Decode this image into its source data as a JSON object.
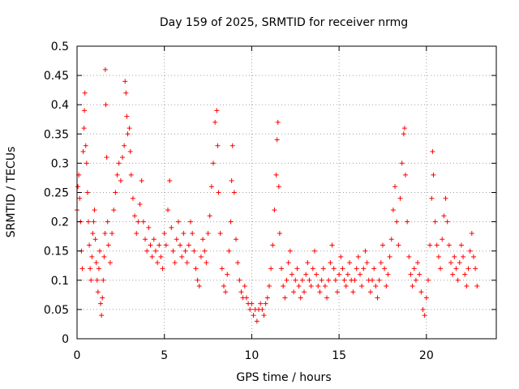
{
  "chart_data": {
    "type": "scatter",
    "title": "Day 159 of 2025, SRMTID for receiver nrmg",
    "xlabel": "GPS time / hours",
    "ylabel": "SRMTID / TECUs",
    "xlim": [
      0,
      24
    ],
    "ylim": [
      0,
      0.5
    ],
    "xticks": [
      0,
      5,
      10,
      15,
      20
    ],
    "yticks": [
      0,
      0.05,
      0.1,
      0.15,
      0.2,
      0.25,
      0.3,
      0.35,
      0.4,
      0.45,
      0.5
    ],
    "xtick_labels": [
      "0",
      "5",
      "10",
      "15",
      "20"
    ],
    "ytick_labels": [
      "0",
      "0.05",
      "0.1",
      "0.15",
      "0.2",
      "0.25",
      "0.3",
      "0.35",
      "0.4",
      "0.45",
      "0.5"
    ],
    "grid": true,
    "marker": "plus",
    "color": "#ff0000",
    "series": [
      {
        "name": "SRMTID",
        "points": [
          [
            0.0,
            0.22
          ],
          [
            0.05,
            0.26
          ],
          [
            0.1,
            0.28
          ],
          [
            0.15,
            0.24
          ],
          [
            0.2,
            0.2
          ],
          [
            0.25,
            0.15
          ],
          [
            0.3,
            0.12
          ],
          [
            0.35,
            0.32
          ],
          [
            0.4,
            0.36
          ],
          [
            0.42,
            0.39
          ],
          [
            0.45,
            0.42
          ],
          [
            0.5,
            0.33
          ],
          [
            0.55,
            0.3
          ],
          [
            0.6,
            0.25
          ],
          [
            0.65,
            0.2
          ],
          [
            0.7,
            0.16
          ],
          [
            0.75,
            0.12
          ],
          [
            0.8,
            0.1
          ],
          [
            0.85,
            0.14
          ],
          [
            0.9,
            0.18
          ],
          [
            0.95,
            0.2
          ],
          [
            1.0,
            0.22
          ],
          [
            1.05,
            0.17
          ],
          [
            1.1,
            0.13
          ],
          [
            1.15,
            0.1
          ],
          [
            1.2,
            0.08
          ],
          [
            1.25,
            0.12
          ],
          [
            1.3,
            0.15
          ],
          [
            1.35,
            0.06
          ],
          [
            1.4,
            0.04
          ],
          [
            1.45,
            0.07
          ],
          [
            1.5,
            0.1
          ],
          [
            1.55,
            0.14
          ],
          [
            1.6,
            0.18
          ],
          [
            1.62,
            0.46
          ],
          [
            1.65,
            0.4
          ],
          [
            1.7,
            0.31
          ],
          [
            1.75,
            0.2
          ],
          [
            1.8,
            0.16
          ],
          [
            1.9,
            0.13
          ],
          [
            2.0,
            0.18
          ],
          [
            2.1,
            0.22
          ],
          [
            2.2,
            0.25
          ],
          [
            2.3,
            0.28
          ],
          [
            2.4,
            0.3
          ],
          [
            2.5,
            0.27
          ],
          [
            2.6,
            0.31
          ],
          [
            2.7,
            0.33
          ],
          [
            2.75,
            0.44
          ],
          [
            2.8,
            0.42
          ],
          [
            2.85,
            0.38
          ],
          [
            2.9,
            0.35
          ],
          [
            3.0,
            0.36
          ],
          [
            3.05,
            0.32
          ],
          [
            3.1,
            0.28
          ],
          [
            3.2,
            0.24
          ],
          [
            3.3,
            0.21
          ],
          [
            3.4,
            0.18
          ],
          [
            3.5,
            0.2
          ],
          [
            3.6,
            0.23
          ],
          [
            3.7,
            0.27
          ],
          [
            3.8,
            0.2
          ],
          [
            3.9,
            0.17
          ],
          [
            4.0,
            0.15
          ],
          [
            4.1,
            0.19
          ],
          [
            4.2,
            0.16
          ],
          [
            4.3,
            0.14
          ],
          [
            4.4,
            0.17
          ],
          [
            4.5,
            0.15
          ],
          [
            4.6,
            0.13
          ],
          [
            4.7,
            0.16
          ],
          [
            4.8,
            0.14
          ],
          [
            4.9,
            0.12
          ],
          [
            5.0,
            0.18
          ],
          [
            5.1,
            0.16
          ],
          [
            5.2,
            0.22
          ],
          [
            5.3,
            0.27
          ],
          [
            5.4,
            0.19
          ],
          [
            5.5,
            0.15
          ],
          [
            5.6,
            0.13
          ],
          [
            5.7,
            0.17
          ],
          [
            5.8,
            0.2
          ],
          [
            5.9,
            0.16
          ],
          [
            6.0,
            0.14
          ],
          [
            6.1,
            0.18
          ],
          [
            6.2,
            0.15
          ],
          [
            6.3,
            0.13
          ],
          [
            6.4,
            0.16
          ],
          [
            6.5,
            0.2
          ],
          [
            6.6,
            0.18
          ],
          [
            6.7,
            0.15
          ],
          [
            6.8,
            0.12
          ],
          [
            6.9,
            0.1
          ],
          [
            7.0,
            0.09
          ],
          [
            7.1,
            0.14
          ],
          [
            7.2,
            0.17
          ],
          [
            7.3,
            0.15
          ],
          [
            7.4,
            0.13
          ],
          [
            7.5,
            0.18
          ],
          [
            7.6,
            0.21
          ],
          [
            7.7,
            0.26
          ],
          [
            7.8,
            0.3
          ],
          [
            7.9,
            0.37
          ],
          [
            8.0,
            0.39
          ],
          [
            8.05,
            0.33
          ],
          [
            8.1,
            0.25
          ],
          [
            8.2,
            0.18
          ],
          [
            8.3,
            0.12
          ],
          [
            8.4,
            0.09
          ],
          [
            8.5,
            0.08
          ],
          [
            8.6,
            0.11
          ],
          [
            8.7,
            0.15
          ],
          [
            8.8,
            0.2
          ],
          [
            8.85,
            0.27
          ],
          [
            8.9,
            0.33
          ],
          [
            9.0,
            0.25
          ],
          [
            9.1,
            0.17
          ],
          [
            9.2,
            0.13
          ],
          [
            9.3,
            0.1
          ],
          [
            9.4,
            0.08
          ],
          [
            9.5,
            0.07
          ],
          [
            9.6,
            0.09
          ],
          [
            9.7,
            0.07
          ],
          [
            9.8,
            0.06
          ],
          [
            9.9,
            0.05
          ],
          [
            10.0,
            0.06
          ],
          [
            10.1,
            0.04
          ],
          [
            10.2,
            0.05
          ],
          [
            10.3,
            0.03
          ],
          [
            10.4,
            0.05
          ],
          [
            10.5,
            0.06
          ],
          [
            10.6,
            0.05
          ],
          [
            10.7,
            0.04
          ],
          [
            10.8,
            0.06
          ],
          [
            10.9,
            0.07
          ],
          [
            11.0,
            0.09
          ],
          [
            11.1,
            0.12
          ],
          [
            11.2,
            0.16
          ],
          [
            11.3,
            0.22
          ],
          [
            11.4,
            0.28
          ],
          [
            11.45,
            0.34
          ],
          [
            11.5,
            0.37
          ],
          [
            11.55,
            0.26
          ],
          [
            11.6,
            0.18
          ],
          [
            11.7,
            0.12
          ],
          [
            11.8,
            0.09
          ],
          [
            11.9,
            0.07
          ],
          [
            12.0,
            0.1
          ],
          [
            12.1,
            0.13
          ],
          [
            12.2,
            0.15
          ],
          [
            12.3,
            0.11
          ],
          [
            12.4,
            0.08
          ],
          [
            12.5,
            0.1
          ],
          [
            12.6,
            0.12
          ],
          [
            12.7,
            0.09
          ],
          [
            12.8,
            0.07
          ],
          [
            12.9,
            0.1
          ],
          [
            13.0,
            0.08
          ],
          [
            13.1,
            0.11
          ],
          [
            13.2,
            0.13
          ],
          [
            13.3,
            0.1
          ],
          [
            13.4,
            0.09
          ],
          [
            13.5,
            0.12
          ],
          [
            13.6,
            0.15
          ],
          [
            13.7,
            0.11
          ],
          [
            13.8,
            0.09
          ],
          [
            13.9,
            0.08
          ],
          [
            14.0,
            0.1
          ],
          [
            14.1,
            0.12
          ],
          [
            14.2,
            0.09
          ],
          [
            14.3,
            0.07
          ],
          [
            14.4,
            0.1
          ],
          [
            14.5,
            0.13
          ],
          [
            14.6,
            0.16
          ],
          [
            14.7,
            0.12
          ],
          [
            14.8,
            0.1
          ],
          [
            14.9,
            0.08
          ],
          [
            15.0,
            0.11
          ],
          [
            15.1,
            0.14
          ],
          [
            15.2,
            0.12
          ],
          [
            15.3,
            0.1
          ],
          [
            15.4,
            0.09
          ],
          [
            15.5,
            0.11
          ],
          [
            15.6,
            0.13
          ],
          [
            15.7,
            0.1
          ],
          [
            15.8,
            0.08
          ],
          [
            15.9,
            0.1
          ],
          [
            16.0,
            0.12
          ],
          [
            16.1,
            0.14
          ],
          [
            16.2,
            0.11
          ],
          [
            16.3,
            0.09
          ],
          [
            16.4,
            0.12
          ],
          [
            16.5,
            0.15
          ],
          [
            16.6,
            0.13
          ],
          [
            16.7,
            0.1
          ],
          [
            16.8,
            0.08
          ],
          [
            16.9,
            0.1
          ],
          [
            17.0,
            0.12
          ],
          [
            17.1,
            0.09
          ],
          [
            17.2,
            0.07
          ],
          [
            17.3,
            0.1
          ],
          [
            17.4,
            0.13
          ],
          [
            17.5,
            0.16
          ],
          [
            17.6,
            0.12
          ],
          [
            17.7,
            0.09
          ],
          [
            17.8,
            0.11
          ],
          [
            17.9,
            0.14
          ],
          [
            18.0,
            0.17
          ],
          [
            18.1,
            0.22
          ],
          [
            18.2,
            0.26
          ],
          [
            18.3,
            0.2
          ],
          [
            18.4,
            0.16
          ],
          [
            18.5,
            0.24
          ],
          [
            18.6,
            0.3
          ],
          [
            18.7,
            0.35
          ],
          [
            18.75,
            0.36
          ],
          [
            18.8,
            0.28
          ],
          [
            18.9,
            0.2
          ],
          [
            19.0,
            0.14
          ],
          [
            19.1,
            0.11
          ],
          [
            19.2,
            0.09
          ],
          [
            19.3,
            0.12
          ],
          [
            19.4,
            0.1
          ],
          [
            19.5,
            0.13
          ],
          [
            19.6,
            0.11
          ],
          [
            19.7,
            0.08
          ],
          [
            19.8,
            0.05
          ],
          [
            19.9,
            0.04
          ],
          [
            20.0,
            0.07
          ],
          [
            20.1,
            0.1
          ],
          [
            20.2,
            0.16
          ],
          [
            20.3,
            0.24
          ],
          [
            20.35,
            0.32
          ],
          [
            20.4,
            0.28
          ],
          [
            20.5,
            0.2
          ],
          [
            20.6,
            0.16
          ],
          [
            20.7,
            0.14
          ],
          [
            20.8,
            0.12
          ],
          [
            20.9,
            0.17
          ],
          [
            21.0,
            0.21
          ],
          [
            21.1,
            0.24
          ],
          [
            21.2,
            0.2
          ],
          [
            21.3,
            0.16
          ],
          [
            21.4,
            0.13
          ],
          [
            21.5,
            0.11
          ],
          [
            21.6,
            0.14
          ],
          [
            21.7,
            0.12
          ],
          [
            21.8,
            0.1
          ],
          [
            21.9,
            0.13
          ],
          [
            22.0,
            0.16
          ],
          [
            22.1,
            0.14
          ],
          [
            22.2,
            0.11
          ],
          [
            22.3,
            0.09
          ],
          [
            22.4,
            0.12
          ],
          [
            22.5,
            0.15
          ],
          [
            22.6,
            0.18
          ],
          [
            22.7,
            0.14
          ],
          [
            22.8,
            0.12
          ],
          [
            22.9,
            0.09
          ]
        ]
      }
    ]
  }
}
